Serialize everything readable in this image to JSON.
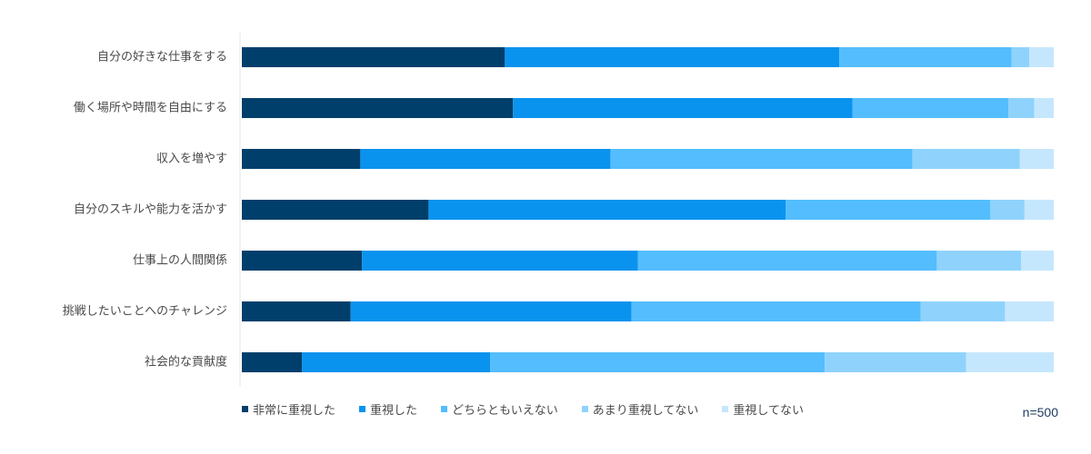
{
  "chart_data": {
    "type": "bar",
    "orientation": "horizontal",
    "stacked": true,
    "categories": [
      "自分の好きな仕事をする",
      "働く場所や時間を自由にする",
      "収入を増やす",
      "自分のスキルや能力を活かす",
      "仕事上の人間関係",
      "挑戦したいことへのチャレンジ",
      "社会的な貢献度"
    ],
    "series": [
      {
        "name": "非常に重視した",
        "color": "#003f6b",
        "values": [
          32.4,
          33.4,
          14.6,
          23.0,
          14.8,
          13.4,
          7.4
        ]
      },
      {
        "name": "重視した",
        "color": "#0a93ee",
        "values": [
          41.2,
          41.8,
          30.8,
          44.0,
          34.0,
          34.6,
          23.2
        ]
      },
      {
        "name": "どちらともいえない",
        "color": "#54bdfd",
        "values": [
          21.2,
          19.2,
          37.2,
          25.2,
          36.8,
          35.6,
          41.2
        ]
      },
      {
        "name": "あまり重視してない",
        "color": "#8fd3fd",
        "values": [
          2.2,
          3.2,
          13.2,
          4.2,
          10.4,
          10.4,
          17.4
        ]
      },
      {
        "name": "重視してない",
        "color": "#c5e7fd",
        "values": [
          3.0,
          2.4,
          4.2,
          3.6,
          4.0,
          6.0,
          10.8
        ]
      }
    ],
    "xlim": [
      0,
      100
    ],
    "grid": false,
    "legend_position": "bottom",
    "note": "n=500"
  }
}
